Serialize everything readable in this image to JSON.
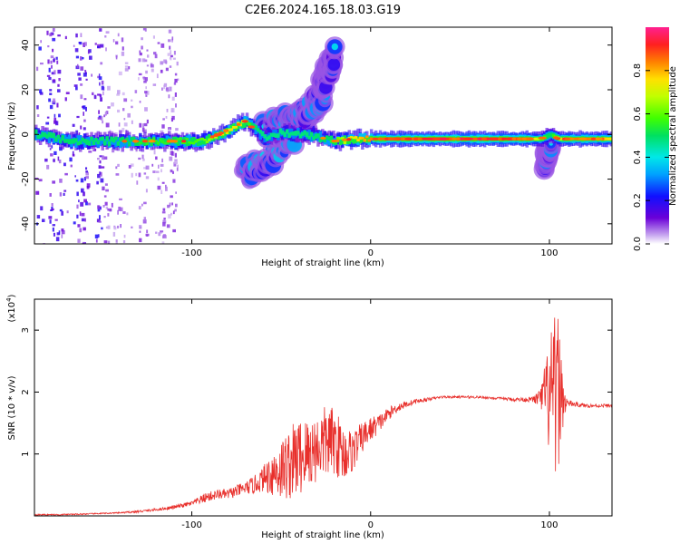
{
  "title": "C2E6.2024.165.18.03.G19",
  "colors": {
    "snr_line": "#e8302c",
    "spectrogram_core": "#e8302c",
    "spectrogram_ridge": "#00d000",
    "spectrogram_edge": "#2020ff",
    "spectrogram_halo": "#c8a8f0"
  },
  "chart_data": [
    {
      "type": "heatmap",
      "title": "C2E6.2024.165.18.03.G19",
      "xlabel": "Height of straight line (km)",
      "ylabel": "Frequency (Hz)",
      "xlim": [
        -188,
        135
      ],
      "ylim": [
        -49,
        48
      ],
      "x_ticks": [
        -100,
        0,
        100
      ],
      "x_tick_labels": [
        "-100",
        "0",
        "100"
      ],
      "y_ticks": [
        -40,
        -20,
        0,
        20,
        40
      ],
      "y_tick_labels": [
        "-40",
        "-20",
        "0",
        "20",
        "40"
      ],
      "colorbar": {
        "label": "Normalized spectral amplitude",
        "range": [
          0,
          1
        ],
        "ticks": [
          0.0,
          0.2,
          0.4,
          0.6,
          0.8
        ],
        "tick_labels": [
          "0.0",
          "0.2",
          "0.4",
          "0.6",
          "0.8"
        ],
        "colormap": "rainbow"
      },
      "main_ridge": {
        "x": [
          -188,
          -170,
          -150,
          -130,
          -110,
          -95,
          -85,
          -75,
          -70,
          -60,
          -50,
          -40,
          -30,
          -20,
          -10,
          0,
          20,
          40,
          60,
          80,
          90,
          95,
          100,
          105,
          110,
          120,
          135
        ],
        "frequency": [
          0,
          -3,
          -3,
          -3,
          -3,
          -3,
          0,
          4,
          6,
          -2,
          1,
          0,
          -1,
          -3,
          -2,
          -2,
          -2,
          -2,
          -2,
          -2,
          -2,
          -2,
          0,
          -2,
          -2,
          -2,
          -2
        ],
        "amplitude": [
          0.45,
          0.5,
          0.45,
          0.55,
          0.55,
          0.6,
          0.7,
          0.75,
          0.6,
          0.35,
          0.35,
          0.4,
          0.45,
          0.6,
          0.75,
          0.85,
          0.9,
          0.95,
          0.95,
          0.9,
          0.8,
          0.6,
          0.5,
          0.7,
          0.85,
          0.85,
          0.75
        ]
      },
      "secondary_features": [
        {
          "x": [
            -72,
            -65,
            -55,
            -45,
            -35,
            -30
          ],
          "frequency": [
            -18,
            -15,
            -10,
            -2,
            6,
            12
          ],
          "amplitude": 0.35
        },
        {
          "x": [
            -60,
            -50,
            -40,
            -35,
            -30,
            -25
          ],
          "frequency": [
            2,
            5,
            8,
            12,
            15,
            18
          ],
          "amplitude": 0.3
        },
        {
          "x": [
            -28,
            -25,
            -22,
            -20
          ],
          "frequency": [
            22,
            26,
            31,
            37
          ],
          "amplitude": 0.25
        },
        {
          "x": [
            97,
            99,
            101
          ],
          "frequency": [
            -12,
            -8,
            -4
          ],
          "amplitude": 0.3
        }
      ],
      "scatter_region": {
        "x_range": [
          -188,
          -108
        ],
        "frequency_range": [
          -49,
          48
        ],
        "amplitude": 0.15
      }
    },
    {
      "type": "line",
      "xlabel": "Height of straight line (km)",
      "ylabel": "SNR (10 * v/v)",
      "y_multiplier_label": "(x10",
      "y_multiplier_exp": "4",
      "y_multiplier_close": ")",
      "xlim": [
        -188,
        135
      ],
      "ylim": [
        0,
        3.5
      ],
      "x_ticks": [
        -100,
        0,
        100
      ],
      "x_tick_labels": [
        "-100",
        "0",
        "100"
      ],
      "y_ticks": [
        1,
        2,
        3
      ],
      "y_tick_labels": [
        "1",
        "2",
        "3"
      ],
      "series": [
        {
          "x": [
            -188,
            -175,
            -160,
            -150,
            -140,
            -130,
            -120,
            -110,
            -100,
            -92,
            -85,
            -80,
            -75,
            -70,
            -65,
            -60,
            -55,
            -50,
            -45,
            -40,
            -35,
            -30,
            -25,
            -20,
            -15,
            -10,
            -5,
            0,
            5,
            10,
            15,
            20,
            25,
            30,
            35,
            40,
            50,
            60,
            70,
            80,
            90,
            95,
            98,
            100,
            102,
            104,
            106,
            108,
            110,
            115,
            120,
            125,
            130,
            135
          ],
          "y": [
            0.02,
            0.02,
            0.03,
            0.04,
            0.05,
            0.07,
            0.1,
            0.14,
            0.2,
            0.3,
            0.35,
            0.35,
            0.4,
            0.45,
            0.5,
            0.6,
            0.7,
            0.75,
            0.85,
            0.95,
            1.0,
            1.1,
            1.2,
            1.2,
            1.0,
            1.05,
            1.25,
            1.4,
            1.5,
            1.65,
            1.75,
            1.8,
            1.85,
            1.87,
            1.9,
            1.92,
            1.92,
            1.92,
            1.9,
            1.88,
            1.88,
            1.9,
            1.95,
            1.9,
            1.8,
            1.95,
            2.0,
            1.85,
            1.82,
            1.8,
            1.78,
            1.78,
            1.78,
            1.78
          ],
          "noise_amplitude": [
            0.01,
            0.01,
            0.01,
            0.01,
            0.01,
            0.02,
            0.02,
            0.03,
            0.04,
            0.08,
            0.08,
            0.08,
            0.1,
            0.1,
            0.15,
            0.2,
            0.4,
            0.5,
            0.6,
            0.65,
            0.6,
            0.55,
            0.6,
            0.55,
            0.45,
            0.35,
            0.25,
            0.2,
            0.15,
            0.1,
            0.08,
            0.05,
            0.04,
            0.03,
            0.02,
            0.02,
            0.02,
            0.02,
            0.02,
            0.03,
            0.04,
            0.15,
            0.6,
            1.0,
            1.3,
            1.4,
            1.0,
            0.3,
            0.06,
            0.04,
            0.03,
            0.03,
            0.03,
            0.03
          ]
        }
      ]
    }
  ]
}
